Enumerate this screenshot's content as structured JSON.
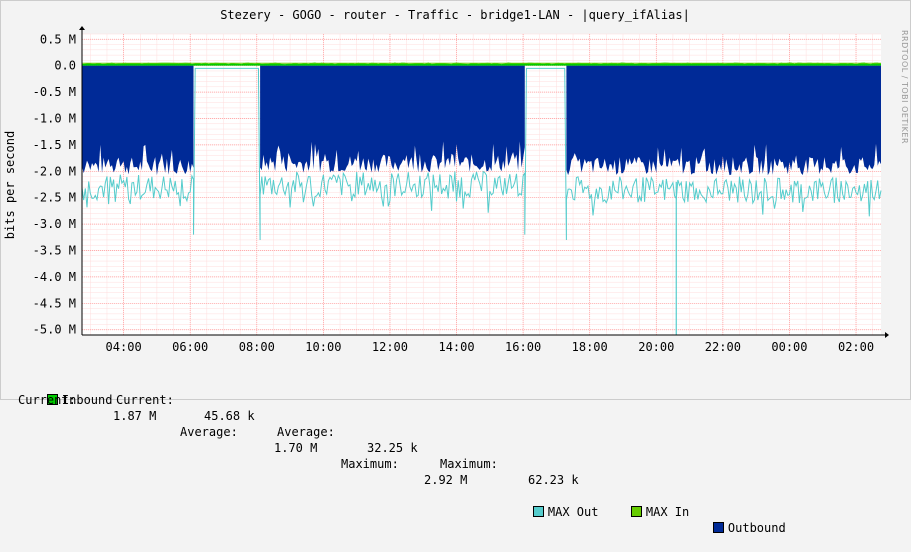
{
  "chart_data": {
    "type": "area",
    "title": "Stezery - GOGO - router - Traffic - bridge1-LAN - |query_ifAlias|",
    "ylabel": "bits per second",
    "xlabel": "",
    "ylim": [
      -5.1,
      0.6
    ],
    "y_unit": "M",
    "yticks": [
      {
        "value": 0.5,
        "label": "0.5 M"
      },
      {
        "value": 0.0,
        "label": "0.0"
      },
      {
        "value": -0.5,
        "label": "-0.5 M"
      },
      {
        "value": -1.0,
        "label": "-1.0 M"
      },
      {
        "value": -1.5,
        "label": "-1.5 M"
      },
      {
        "value": -2.0,
        "label": "-2.0 M"
      },
      {
        "value": -2.5,
        "label": "-2.5 M"
      },
      {
        "value": -3.0,
        "label": "-3.0 M"
      },
      {
        "value": -3.5,
        "label": "-3.5 M"
      },
      {
        "value": -4.0,
        "label": "-4.0 M"
      },
      {
        "value": -4.5,
        "label": "-4.5 M"
      },
      {
        "value": -5.0,
        "label": "-5.0 M"
      }
    ],
    "x_hours_range": [
      2.75,
      26.75
    ],
    "xticks": [
      {
        "hour": 4,
        "label": "04:00"
      },
      {
        "hour": 6,
        "label": "06:00"
      },
      {
        "hour": 8,
        "label": "08:00"
      },
      {
        "hour": 10,
        "label": "10:00"
      },
      {
        "hour": 12,
        "label": "12:00"
      },
      {
        "hour": 14,
        "label": "14:00"
      },
      {
        "hour": 16,
        "label": "16:00"
      },
      {
        "hour": 18,
        "label": "18:00"
      },
      {
        "hour": 20,
        "label": "20:00"
      },
      {
        "hour": 22,
        "label": "22:00"
      },
      {
        "hour": 0,
        "label": "00:00"
      },
      {
        "hour": 2,
        "label": "02:00"
      }
    ],
    "grid": true,
    "outbound_segments": [
      {
        "start_hour": 2.75,
        "end_hour": 6.1,
        "avg": -1.9,
        "max_out": -2.3
      },
      {
        "start_hour": 8.1,
        "end_hour": 16.05,
        "avg": -1.85,
        "max_out": -2.25
      },
      {
        "start_hour": 17.3,
        "end_hour": 26.75,
        "avg": -1.9,
        "max_out": -2.35
      }
    ],
    "inbound_level": 0.03,
    "max_out_spike": {
      "hour": 20.6,
      "value": -5.1
    },
    "series": [
      {
        "name": "Inbound",
        "color": "#00cc00",
        "current": "45.68 k",
        "average": "32.25 k",
        "maximum": "62.23 k"
      },
      {
        "name": "MAX In",
        "color": "#66cc00"
      },
      {
        "name": "Outbound",
        "color": "#002a97",
        "current": "1.87 M",
        "average": "1.70 M",
        "maximum": "2.92 M"
      },
      {
        "name": "MAX Out",
        "color": "#55cccc"
      }
    ]
  },
  "legend": {
    "inbound": {
      "name": "Inbound",
      "current_label": "Current:",
      "current": "45.68 k",
      "average_label": "Average:",
      "average": "32.25 k",
      "maximum_label": "Maximum:",
      "maximum": "62.23 k"
    },
    "max_in": "MAX In",
    "outbound": "Outbound",
    "outbound_stats": {
      "current_label": "Current:",
      "current": "1.87 M",
      "average_label": "Average:",
      "average": "1.70 M",
      "maximum_label": "Maximum:",
      "maximum": "2.92 M"
    },
    "max_out": "MAX Out"
  },
  "watermark": "RRDTOOL / TOBI OETIKER",
  "colors": {
    "background": "#f3f3f3",
    "plot_bg": "#ffffff",
    "grid": "#ffaaaa",
    "axis": "#000000"
  }
}
